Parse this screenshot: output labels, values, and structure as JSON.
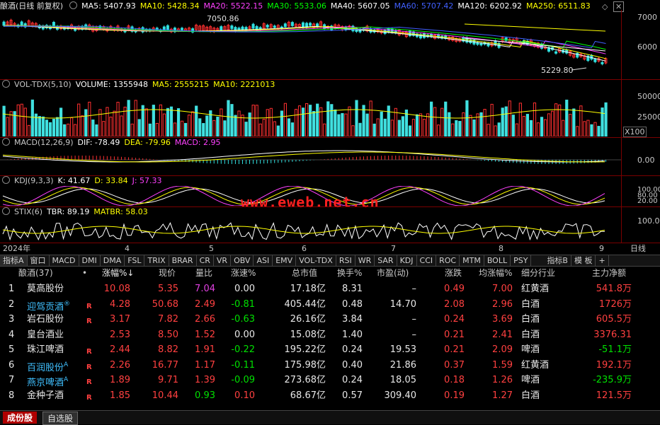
{
  "chart_title": "酿酒(日线 前复权)",
  "ma_legend": [
    {
      "label": "MA5: 5407.93",
      "color": "#ffffff"
    },
    {
      "label": "MA10: 5428.34",
      "color": "#ffff00"
    },
    {
      "label": "MA20: 5522.15",
      "color": "#ff40ff"
    },
    {
      "label": "MA30: 5533.06",
      "color": "#00ff00"
    },
    {
      "label": "MA40: 5607.05",
      "color": "#ffffff"
    },
    {
      "label": "MA60: 5707.42",
      "color": "#4060ff"
    },
    {
      "label": "MA120: 6202.92",
      "color": "#ffffff"
    },
    {
      "label": "MA250: 6511.83",
      "color": "#ffff00"
    }
  ],
  "price_axis": [
    "7000",
    "6000"
  ],
  "annot_high": "7050.86",
  "annot_low": "5229.80",
  "vol_legend": [
    {
      "label": "VOL-TDX(5,10)",
      "color": "#c8c8c8"
    },
    {
      "label": "VOLUME: 1355948",
      "color": "#ffffff"
    },
    {
      "label": "MA5: 2555215",
      "color": "#ffff00"
    },
    {
      "label": "MA10: 2221013",
      "color": "#ffff00"
    }
  ],
  "vol_axis": [
    "50000",
    "25000"
  ],
  "vol_unit": "X100",
  "macd_legend": [
    {
      "label": "MACD(12,26,9)",
      "color": "#c8c8c8"
    },
    {
      "label": "DIF: -78.49",
      "color": "#ffffff"
    },
    {
      "label": "DEA: -79.96",
      "color": "#ffff00"
    },
    {
      "label": "MACD: 2.95",
      "color": "#ff40ff"
    }
  ],
  "macd_axis": [
    "0.00"
  ],
  "kdj_legend": [
    {
      "label": "KDJ(9,3,3)",
      "color": "#c8c8c8"
    },
    {
      "label": "K: 41.67",
      "color": "#ffffff"
    },
    {
      "label": "D: 33.84",
      "color": "#ffff00"
    },
    {
      "label": "J: 57.33",
      "color": "#ff40ff"
    }
  ],
  "kdj_axis": [
    "100.00",
    "80.00",
    "20.00"
  ],
  "stix_legend": [
    {
      "label": "STIX(6)",
      "color": "#c8c8c8"
    },
    {
      "label": "TBR: 89.19",
      "color": "#ffffff"
    },
    {
      "label": "MATBR: 58.03",
      "color": "#ffff00"
    }
  ],
  "stix_axis": [
    "100.0"
  ],
  "watermark": "www.eweb.net.cn",
  "time_axis": [
    "2024年",
    "4",
    "5",
    "6",
    "7",
    "8",
    "9"
  ],
  "period_label": "日线",
  "toolbar": [
    "指标A",
    "窗口",
    "MACD",
    "DMI",
    "DMA",
    "FSL",
    "TRIX",
    "BRAR",
    "CR",
    "VR",
    "OBV",
    "ASI",
    "EMV",
    "VOL-TDX",
    "RSI",
    "WR",
    "SAR",
    "KDJ",
    "CCI",
    "ROC",
    "MTM",
    "BOLL",
    "PSY",
    "指标B",
    "模 板",
    "+"
  ],
  "table": {
    "headers": [
      "酿酒(37)",
      "•",
      "涨幅%↓",
      "现价",
      "量比",
      "涨速%",
      "总市值",
      "换手%",
      "市盈(动)",
      "涨跌",
      "均涨幅%",
      "细分行业",
      "主力净额"
    ],
    "rows": [
      {
        "idx": "1",
        "name": "莫高股份",
        "flag": "",
        "r": "",
        "chg": "10.08",
        "price": "5.35",
        "vr": "7.04",
        "spd": "0.00",
        "mcap": "17.18亿",
        "turn": "8.31",
        "pe": "–",
        "diff": "0.49",
        "avg": "7.00",
        "ind": "红黄酒",
        "net": "541.8万"
      },
      {
        "idx": "2",
        "name": "迎驾贡酒",
        "flag": "®",
        "r": "R",
        "chg": "4.28",
        "price": "50.68",
        "vr": "2.49",
        "spd": "-0.81",
        "mcap": "405.44亿",
        "turn": "0.48",
        "pe": "14.70",
        "diff": "2.08",
        "avg": "2.96",
        "ind": "白酒",
        "net": "1726万"
      },
      {
        "idx": "3",
        "name": "岩石股份",
        "flag": "",
        "r": "R",
        "chg": "3.17",
        "price": "7.82",
        "vr": "2.66",
        "spd": "-0.63",
        "mcap": "26.16亿",
        "turn": "3.84",
        "pe": "–",
        "diff": "0.24",
        "avg": "3.69",
        "ind": "白酒",
        "net": "605.5万"
      },
      {
        "idx": "4",
        "name": "皇台酒业",
        "flag": "",
        "r": "",
        "chg": "2.53",
        "price": "8.50",
        "vr": "1.52",
        "spd": "0.00",
        "mcap": "15.08亿",
        "turn": "1.40",
        "pe": "–",
        "diff": "0.21",
        "avg": "2.41",
        "ind": "白酒",
        "net": "3376.31"
      },
      {
        "idx": "5",
        "name": "珠江啤酒",
        "flag": "",
        "r": "R",
        "chg": "2.44",
        "price": "8.82",
        "vr": "1.91",
        "spd": "-0.22",
        "mcap": "195.22亿",
        "turn": "0.24",
        "pe": "19.53",
        "diff": "0.21",
        "avg": "2.09",
        "ind": "啤酒",
        "net": "-51.1万"
      },
      {
        "idx": "6",
        "name": "百润股份",
        "flag": "A",
        "r": "R",
        "chg": "2.26",
        "price": "16.77",
        "vr": "1.17",
        "spd": "-0.11",
        "mcap": "175.98亿",
        "turn": "0.40",
        "pe": "21.86",
        "diff": "0.37",
        "avg": "1.59",
        "ind": "红黄酒",
        "net": "192.1万"
      },
      {
        "idx": "7",
        "name": "燕京啤酒",
        "flag": "A",
        "r": "R",
        "chg": "1.89",
        "price": "9.71",
        "vr": "1.39",
        "spd": "-0.09",
        "mcap": "273.68亿",
        "turn": "0.24",
        "pe": "18.05",
        "diff": "0.18",
        "avg": "1.26",
        "ind": "啤酒",
        "net": "-235.9万"
      },
      {
        "idx": "8",
        "name": "金种子酒",
        "flag": "",
        "r": "R",
        "chg": "1.85",
        "price": "10.44",
        "vr": "0.93",
        "spd": "0.10",
        "mcap": "68.67亿",
        "turn": "0.57",
        "pe": "309.40",
        "diff": "0.19",
        "avg": "1.27",
        "ind": "白酒",
        "net": "121.5万"
      }
    ]
  },
  "bottom_tabs": [
    "成份股",
    "自选股"
  ]
}
